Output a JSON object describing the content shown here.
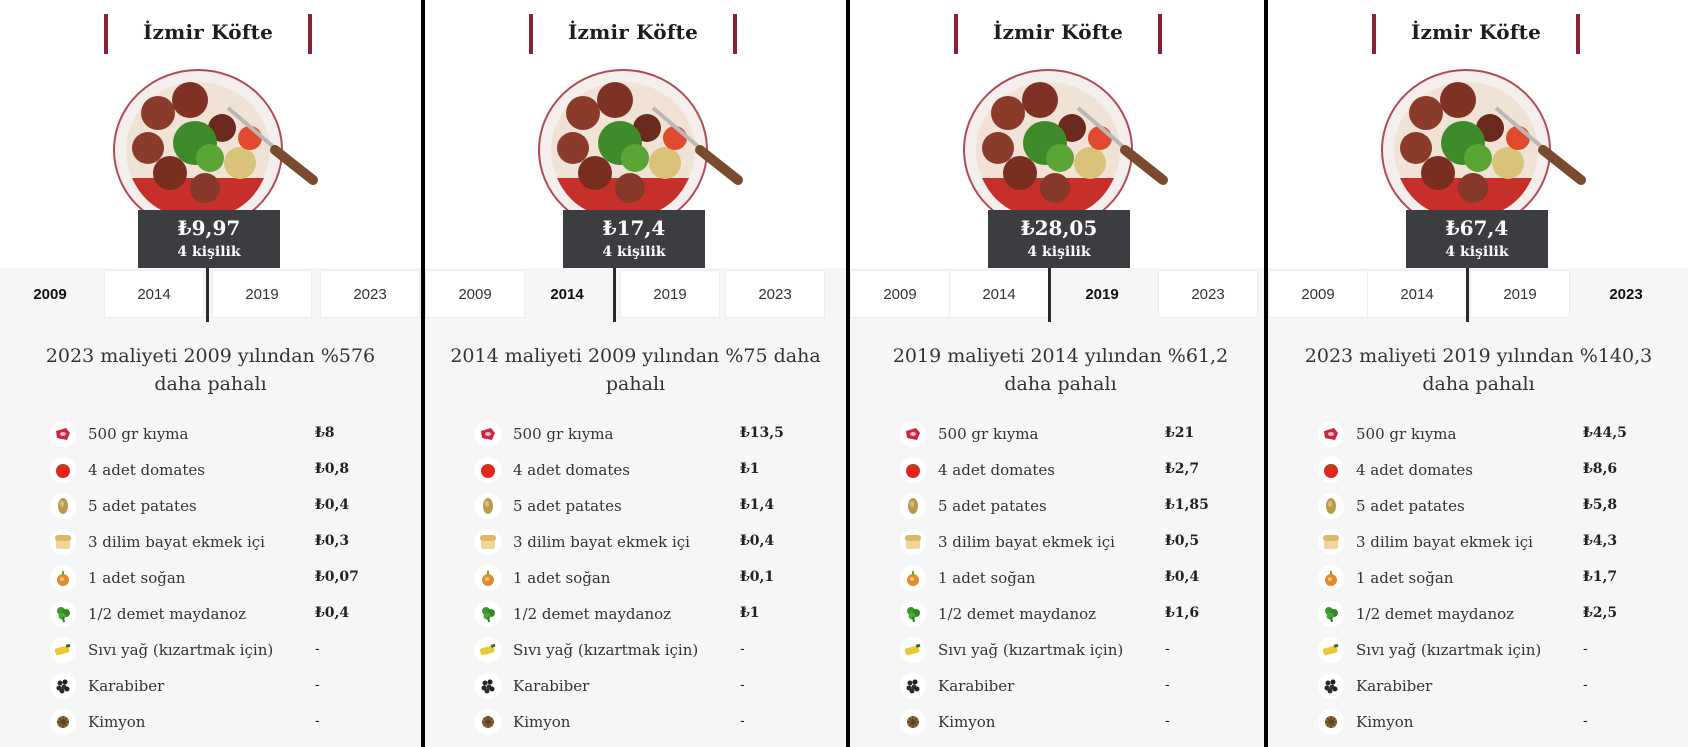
{
  "panels": [
    {
      "title": "İzmir Köfte",
      "price": "₺9,97",
      "serves": "4 kişilik",
      "tabs": [
        "2009",
        "2014",
        "2019",
        "2023"
      ],
      "summary": "2023 maliyeti 2009 yılından %576 daha pahalı",
      "ingredients": [
        {
          "name": "500 gr kıyma",
          "cost": "₺8",
          "icon": "meat-icon"
        },
        {
          "name": "4 adet domates",
          "cost": "₺0,8",
          "icon": "tomato-icon"
        },
        {
          "name": "5 adet patates",
          "cost": "₺0,4",
          "icon": "potato-icon"
        },
        {
          "name": "3 dilim bayat ekmek içi",
          "cost": "₺0,3",
          "icon": "bread-icon"
        },
        {
          "name": "1 adet soğan",
          "cost": "₺0,07",
          "icon": "onion-icon"
        },
        {
          "name": "1/2 demet maydanoz",
          "cost": "₺0,4",
          "icon": "parsley-icon"
        },
        {
          "name": "Sıvı yağ (kızartmak için)",
          "cost": "-",
          "icon": "oil-icon"
        },
        {
          "name": "Karabiber",
          "cost": "-",
          "icon": "black-pepper-icon"
        },
        {
          "name": "Kimyon",
          "cost": "-",
          "icon": "cumin-icon"
        }
      ]
    },
    {
      "title": "İzmir Köfte",
      "price": "₺17,4",
      "serves": "4 kişilik",
      "tabs": [
        "2009",
        "2014",
        "2019",
        "2023"
      ],
      "summary": "2014 maliyeti 2009 yılından %75 daha pahalı",
      "ingredients": [
        {
          "name": "500 gr kıyma",
          "cost": "₺13,5",
          "icon": "meat-icon"
        },
        {
          "name": "4 adet domates",
          "cost": "₺1",
          "icon": "tomato-icon"
        },
        {
          "name": "5 adet patates",
          "cost": "₺1,4",
          "icon": "potato-icon"
        },
        {
          "name": "3 dilim bayat ekmek içi",
          "cost": "₺0,4",
          "icon": "bread-icon"
        },
        {
          "name": "1 adet soğan",
          "cost": "₺0,1",
          "icon": "onion-icon"
        },
        {
          "name": "1/2 demet maydanoz",
          "cost": "₺1",
          "icon": "parsley-icon"
        },
        {
          "name": "Sıvı yağ (kızartmak için)",
          "cost": "-",
          "icon": "oil-icon"
        },
        {
          "name": "Karabiber",
          "cost": "-",
          "icon": "black-pepper-icon"
        },
        {
          "name": "Kimyon",
          "cost": "-",
          "icon": "cumin-icon"
        }
      ]
    },
    {
      "title": "İzmir Köfte",
      "price": "₺28,05",
      "serves": "4 kişilik",
      "tabs": [
        "2009",
        "2014",
        "2019",
        "2023"
      ],
      "summary": "2019 maliyeti 2014 yılından %61,2 daha pahalı",
      "ingredients": [
        {
          "name": "500 gr kıyma",
          "cost": "₺21",
          "icon": "meat-icon"
        },
        {
          "name": "4 adet domates",
          "cost": "₺2,7",
          "icon": "tomato-icon"
        },
        {
          "name": "5 adet patates",
          "cost": "₺1,85",
          "icon": "potato-icon"
        },
        {
          "name": "3 dilim bayat ekmek içi",
          "cost": "₺0,5",
          "icon": "bread-icon"
        },
        {
          "name": "1 adet soğan",
          "cost": "₺0,4",
          "icon": "onion-icon"
        },
        {
          "name": "1/2 demet maydanoz",
          "cost": "₺1,6",
          "icon": "parsley-icon"
        },
        {
          "name": "Sıvı yağ (kızartmak için)",
          "cost": "-",
          "icon": "oil-icon"
        },
        {
          "name": "Karabiber",
          "cost": "-",
          "icon": "black-pepper-icon"
        },
        {
          "name": "Kimyon",
          "cost": "-",
          "icon": "cumin-icon"
        }
      ]
    },
    {
      "title": "İzmir Köfte",
      "price": "₺67,4",
      "serves": "4 kişilik",
      "tabs": [
        "2009",
        "2014",
        "2019",
        "2023"
      ],
      "summary": "2023 maliyeti 2019 yılından %140,3 daha pahalı",
      "ingredients": [
        {
          "name": "500 gr kıyma",
          "cost": "₺44,5",
          "icon": "meat-icon"
        },
        {
          "name": "4 adet domates",
          "cost": "₺8,6",
          "icon": "tomato-icon"
        },
        {
          "name": "5 adet patates",
          "cost": "₺5,8",
          "icon": "potato-icon"
        },
        {
          "name": "3 dilim bayat ekmek içi",
          "cost": "₺4,3",
          "icon": "bread-icon"
        },
        {
          "name": "1 adet soğan",
          "cost": "₺1,7",
          "icon": "onion-icon"
        },
        {
          "name": "1/2 demet maydanoz",
          "cost": "₺2,5",
          "icon": "parsley-icon"
        },
        {
          "name": "Sıvı yağ (kızartmak için)",
          "cost": "-",
          "icon": "oil-icon"
        },
        {
          "name": "Karabiber",
          "cost": "-",
          "icon": "black-pepper-icon"
        },
        {
          "name": "Kimyon",
          "cost": "-",
          "icon": "cumin-icon"
        }
      ]
    }
  ],
  "colors": {
    "accent_bar": "#8a2232",
    "price_box": "#3b3d40",
    "panel_bg": "#f6f6f6"
  }
}
